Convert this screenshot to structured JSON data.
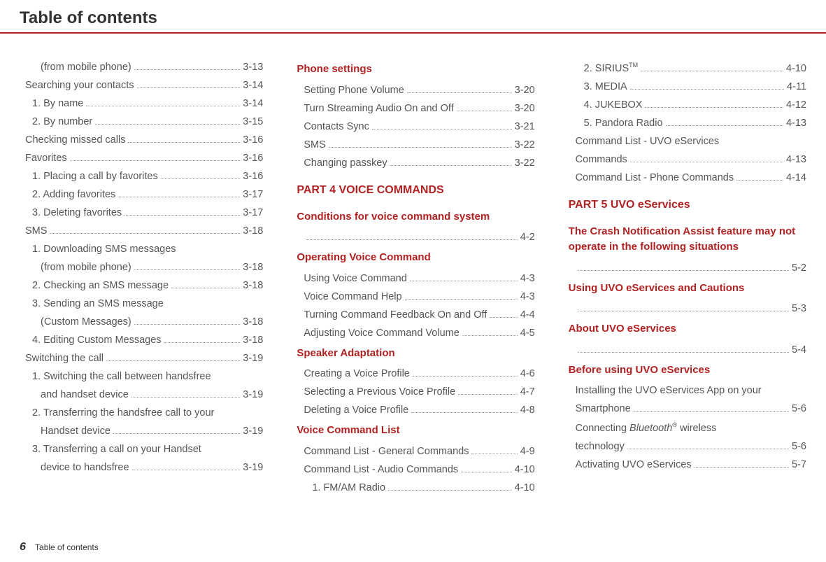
{
  "meta": {
    "title": "Table of contents",
    "footer_page": "6",
    "footer_text": "Table of contents",
    "rule_color": "#b22222"
  },
  "col1": [
    {
      "label": "(from mobile phone)",
      "page": "3-13",
      "indent": 2
    },
    {
      "label": "Searching your contacts",
      "page": "3-14",
      "indent": 0
    },
    {
      "label": "1. By name",
      "page": "3-14",
      "indent": 1
    },
    {
      "label": "2. By number",
      "page": "3-15",
      "indent": 1
    },
    {
      "label": "Checking missed calls",
      "page": "3-16",
      "indent": 0
    },
    {
      "label": "Favorites",
      "page": "3-16",
      "indent": 0
    },
    {
      "label": "1. Placing a call by favorites",
      "page": "3-16",
      "indent": 1
    },
    {
      "label": "2. Adding favorites",
      "page": "3-17",
      "indent": 1
    },
    {
      "label": "3. Deleting favorites",
      "page": "3-17",
      "indent": 1
    },
    {
      "label": "SMS",
      "page": "3-18",
      "indent": 0
    },
    {
      "label": "1. Downloading SMS messages",
      "indent": 1,
      "nopage": true
    },
    {
      "label": "(from mobile phone)",
      "page": "3-18",
      "indent": 2
    },
    {
      "label": "2. Checking an SMS message",
      "page": "3-18",
      "indent": 1
    },
    {
      "label": "3. Sending an SMS message",
      "indent": 1,
      "nopage": true
    },
    {
      "label": "(Custom Messages)",
      "page": "3-18",
      "indent": 2
    },
    {
      "label": "4. Editing Custom Messages",
      "page": "3-18",
      "indent": 1
    },
    {
      "label": "Switching the call",
      "page": "3-19",
      "indent": 0
    },
    {
      "label": "1. Switching the call between handsfree",
      "indent": 1,
      "nopage": true
    },
    {
      "label": "and handset device",
      "page": "3-19",
      "indent": 2
    },
    {
      "label": "2. Transferring the handsfree call to your",
      "indent": 1,
      "nopage": true
    },
    {
      "label": "Handset device",
      "page": "3-19",
      "indent": 2
    },
    {
      "label": "3. Transferring a call on your Handset",
      "indent": 1,
      "nopage": true
    },
    {
      "label": "device to handsfree",
      "page": "3-19",
      "indent": 2
    }
  ],
  "col2": {
    "sections": [
      {
        "type": "heading",
        "text": "Phone settings"
      },
      {
        "type": "line",
        "label": "Setting Phone Volume",
        "page": "3-20",
        "indent": 1
      },
      {
        "type": "line",
        "label": "Turn Streaming Audio On and Off",
        "page": "3-20",
        "indent": 1
      },
      {
        "type": "line",
        "label": "Contacts Sync",
        "page": "3-21",
        "indent": 1
      },
      {
        "type": "line",
        "label": "SMS",
        "page": "3-22",
        "indent": 1
      },
      {
        "type": "line",
        "label": "Changing passkey",
        "page": "3-22",
        "indent": 1
      },
      {
        "type": "part",
        "text": "PART 4   VOICE COMMANDS"
      },
      {
        "type": "heading",
        "text": "Conditions for voice command system"
      },
      {
        "type": "pageonly",
        "page": "4-2",
        "indent": 1
      },
      {
        "type": "heading",
        "text": "Operating Voice Command"
      },
      {
        "type": "line",
        "label": "Using Voice Command",
        "page": "4-3",
        "indent": 1
      },
      {
        "type": "line",
        "label": "Voice Command Help",
        "page": "4-3",
        "indent": 1
      },
      {
        "type": "line",
        "label": "Turning Command Feedback On and Off",
        "page": "4-4",
        "indent": 1
      },
      {
        "type": "line",
        "label": "Adjusting Voice Command Volume",
        "page": "4-5",
        "indent": 1
      },
      {
        "type": "heading",
        "text": "Speaker Adaptation"
      },
      {
        "type": "line",
        "label": "Creating a Voice Profile",
        "page": "4-6",
        "indent": 1
      },
      {
        "type": "line",
        "label": "Selecting a Previous Voice Profile",
        "page": "4-7",
        "indent": 1
      },
      {
        "type": "line",
        "label": "Deleting a Voice Profile",
        "page": "4-8",
        "indent": 1
      },
      {
        "type": "heading",
        "text": "Voice Command List"
      },
      {
        "type": "line",
        "label": "Command List - General Commands",
        "page": "4-9",
        "indent": 1
      },
      {
        "type": "line",
        "label": "Command List - Audio Commands",
        "page": "4-10",
        "indent": 1
      },
      {
        "type": "line",
        "label": "1. FM/AM Radio",
        "page": "4-10",
        "indent": 2
      }
    ]
  },
  "col3": {
    "sections": [
      {
        "type": "line",
        "label": "2. SIRIUS",
        "sup": "TM",
        "page": "4-10",
        "indent": 2
      },
      {
        "type": "line",
        "label": "3. MEDIA",
        "page": "4-11",
        "indent": 2
      },
      {
        "type": "line",
        "label": "4. JUKEBOX",
        "page": "4-12",
        "indent": 2
      },
      {
        "type": "line",
        "label": "5. Pandora Radio",
        "page": "4-13",
        "indent": 2
      },
      {
        "type": "line",
        "label": "Command List - UVO eServices",
        "indent": 1,
        "nopage": true
      },
      {
        "type": "line",
        "label": "Commands",
        "page": "4-13",
        "indent": 1
      },
      {
        "type": "line",
        "label": "Command List - Phone Commands",
        "page": "4-14",
        "indent": 1
      },
      {
        "type": "part",
        "text": "PART 5  UVO eServices"
      },
      {
        "type": "heading",
        "text": "The Crash Notification Assist feature may not operate in the following situations"
      },
      {
        "type": "pageonly",
        "page": "5-2",
        "indent": 1
      },
      {
        "type": "heading",
        "text": "Using UVO eServices and Cautions"
      },
      {
        "type": "pageonly",
        "page": "5-3",
        "indent": 1
      },
      {
        "type": "heading",
        "text": "About UVO eServices"
      },
      {
        "type": "pageonly",
        "page": "5-4",
        "indent": 1
      },
      {
        "type": "heading",
        "text": "Before using UVO eServices"
      },
      {
        "type": "line",
        "label": "Installing the UVO eServices App on your",
        "indent": 1,
        "nopage": true
      },
      {
        "type": "line",
        "label": "Smartphone",
        "page": "5-6",
        "indent": 1
      },
      {
        "type": "bt_line",
        "prefix": "Connecting ",
        "ital": "Bluetooth",
        "sup": "®",
        "suffix": " wireless",
        "indent": 1,
        "nopage": true
      },
      {
        "type": "line",
        "label": "technology",
        "page": "5-6",
        "indent": 1
      },
      {
        "type": "line",
        "label": "Activating UVO eServices",
        "page": "5-7",
        "indent": 1
      }
    ]
  }
}
